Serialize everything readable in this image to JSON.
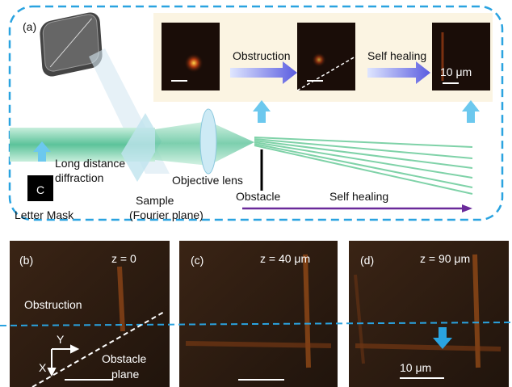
{
  "panel_a": {
    "label": "(a)",
    "arrow_labels": [
      "Obstruction",
      "Self healing"
    ],
    "scale_bar": "10 μm",
    "diffraction": [
      "Long distance",
      "diffraction"
    ],
    "lens": "Objective lens",
    "sample": [
      "Sample",
      "(Fourier plane)"
    ],
    "obstacle": "Obstacle",
    "propagation": "Self healing",
    "mask_letter": "C",
    "mask": "Letter Mask"
  },
  "panel_b": {
    "label": "(b)",
    "z": "z = 0",
    "region": "Obstruction",
    "plane": [
      "Obstacle",
      "plane"
    ],
    "axis_x": "X",
    "axis_y": "Y"
  },
  "panel_c": {
    "label": "(c)",
    "z": "z = 40 μm"
  },
  "panel_d": {
    "label": "(d)",
    "z": "z = 90 μm",
    "scale_bar": "10 μm"
  }
}
